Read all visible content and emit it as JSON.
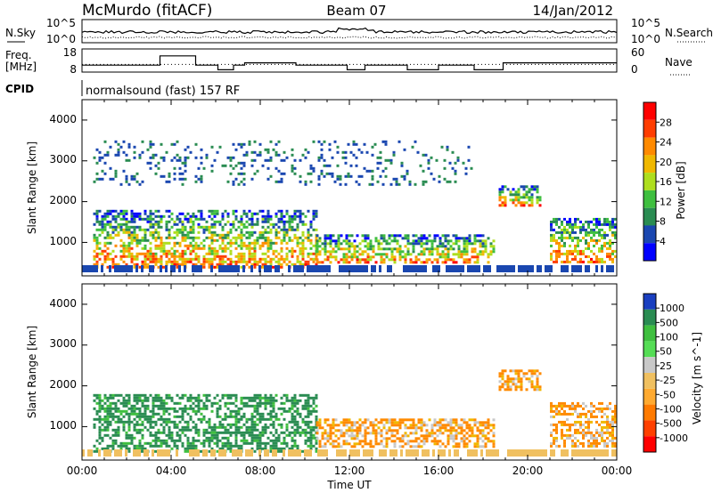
{
  "header": {
    "station": "McMurdo (fitACF)",
    "beam": "Beam 07",
    "date": "14/Jan/2012"
  },
  "sky_panel": {
    "left_label": "N.Sky",
    "right_label": "N.Search",
    "ytick_top": "10^5",
    "ytick_bottom": "10^0"
  },
  "freq_panel": {
    "left_label_1": "Freq.",
    "left_label_2": "[MHz]",
    "right_label": "Nave",
    "yticks_left": [
      "18",
      "8"
    ],
    "yticks_right": [
      "60",
      "0"
    ]
  },
  "cpid": {
    "label": "CPID",
    "value": "normalsound (fast) 157 RF"
  },
  "power_panel": {
    "ylabel": "Slant Range [km]",
    "yticks": [
      "4000",
      "3000",
      "2000",
      "1000"
    ],
    "colorbar_label": "Power [dB]",
    "colorbar_ticks": [
      "28",
      "24",
      "20",
      "16",
      "12",
      "8",
      "4"
    ],
    "colorbar_colors": [
      "#ff0000",
      "#ff3d00",
      "#ff8a00",
      "#f0b800",
      "#aede1e",
      "#3fbf3f",
      "#2a8c52",
      "#1a47b0",
      "#0000ff"
    ]
  },
  "velocity_panel": {
    "ylabel": "Slant Range [km]",
    "yticks": [
      "4000",
      "3000",
      "2000",
      "1000"
    ],
    "colorbar_label": "Velocity [m s^-1]",
    "colorbar_ticks": [
      "1000",
      "500",
      "100",
      "50",
      "25",
      "-25",
      "-50",
      "-100",
      "-500",
      "-1000"
    ],
    "colorbar_colors": [
      "#1a3fc0",
      "#2a8c52",
      "#3fbf3f",
      "#55dd55",
      "#c8c8c8",
      "#f0c060",
      "#ffaa30",
      "#ff7a00",
      "#ff4000",
      "#ff0000"
    ]
  },
  "x_axis": {
    "label": "Time UT",
    "ticks": [
      "00:00",
      "04:00",
      "08:00",
      "12:00",
      "16:00",
      "20:00",
      "00:00"
    ]
  },
  "chart_data": [
    {
      "type": "heatmap",
      "title": "Power",
      "xlabel": "Time UT",
      "ylabel": "Slant Range [km]",
      "x_range_hours": [
        0,
        24
      ],
      "y_range_km": [
        180,
        4500
      ],
      "colorbar": {
        "label": "Power [dB]",
        "ticks": [
          4,
          8,
          12,
          16,
          20,
          24,
          28
        ]
      },
      "scatter_bands": [
        {
          "t_start": 0.5,
          "t_end": 10.5,
          "range_start": 400,
          "range_end": 1800,
          "peak_power": 28
        },
        {
          "t_start": 10.5,
          "t_end": 18.5,
          "range_start": 500,
          "range_end": 1200,
          "peak_power": 24
        },
        {
          "t_start": 18.7,
          "t_end": 20.6,
          "range_start": 1900,
          "range_end": 2400,
          "peak_power": 28
        },
        {
          "t_start": 21.0,
          "t_end": 24.0,
          "range_start": 500,
          "range_end": 1600,
          "peak_power": 26
        },
        {
          "t_start": 0.5,
          "t_end": 17.5,
          "range_start": 2400,
          "range_end": 3500,
          "peak_power": 12
        }
      ]
    },
    {
      "type": "heatmap",
      "title": "Velocity",
      "xlabel": "Time UT",
      "ylabel": "Slant Range [km]",
      "x_range_hours": [
        0,
        24
      ],
      "y_range_km": [
        180,
        4500
      ],
      "colorbar": {
        "label": "Velocity [m s^-1]",
        "ticks": [
          -1000,
          -500,
          -100,
          -50,
          -25,
          25,
          50,
          100,
          500,
          1000
        ]
      },
      "scatter_bands": [
        {
          "t_start": 0.5,
          "t_end": 10.5,
          "range_start": 400,
          "range_end": 1800,
          "velocity": 300
        },
        {
          "t_start": 10.5,
          "t_end": 18.5,
          "range_start": 500,
          "range_end": 1200,
          "velocity": -200
        },
        {
          "t_start": 18.7,
          "t_end": 20.6,
          "range_start": 1900,
          "range_end": 2400,
          "velocity": -300
        },
        {
          "t_start": 21.0,
          "t_end": 24.0,
          "range_start": 500,
          "range_end": 1600,
          "velocity": -400
        }
      ]
    },
    {
      "type": "line",
      "title": "N.Sky / N.Search",
      "x_range_hours": [
        0,
        24
      ]
    },
    {
      "type": "line",
      "title": "Freq. [MHz] / Nave",
      "x": [
        0,
        2.7,
        3.5,
        5.1,
        5.6,
        6.1,
        6.6,
        6.8,
        7.3,
        9.6,
        10.0,
        11.1,
        11.9,
        12.5,
        12.7,
        14.1,
        14.6,
        15.9,
        16.0,
        17.4,
        17.6,
        18.6,
        18.9,
        24.0
      ],
      "freq_mhz": [
        11,
        11,
        15,
        11,
        11,
        9,
        9,
        11,
        12,
        11,
        11,
        11,
        9,
        9,
        11,
        11,
        9,
        9,
        11,
        11,
        9,
        9,
        12,
        12
      ],
      "ylim_freq": [
        8,
        18
      ],
      "ylim_nave": [
        0,
        60
      ]
    }
  ]
}
